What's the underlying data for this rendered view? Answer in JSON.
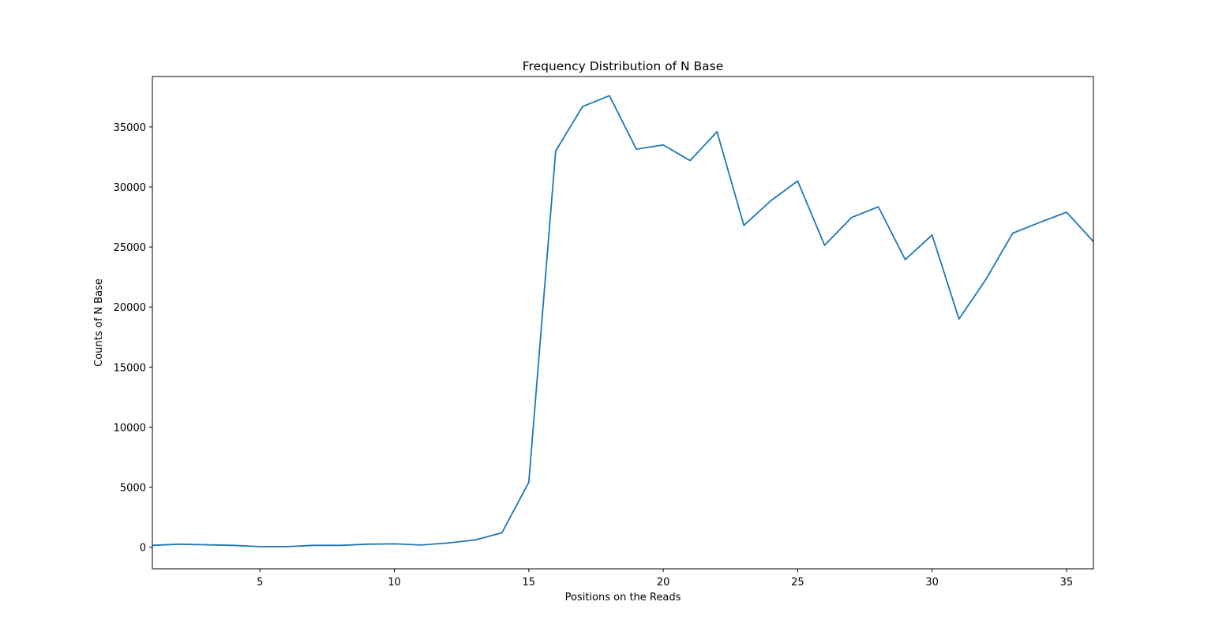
{
  "chart_data": {
    "type": "line",
    "title": "Frequency Distribution of N Base",
    "xlabel": "Positions on the Reads",
    "ylabel": "Counts of N Base",
    "xlim": [
      1,
      36
    ],
    "ylim": [
      -1800,
      39200
    ],
    "xticks": [
      5,
      10,
      15,
      20,
      25,
      30,
      35
    ],
    "yticks": [
      0,
      5000,
      10000,
      15000,
      20000,
      25000,
      30000,
      35000
    ],
    "grid": false,
    "series": [
      {
        "color": "#1f77b4",
        "x": [
          1,
          2,
          3,
          4,
          5,
          6,
          7,
          8,
          9,
          10,
          11,
          12,
          13,
          14,
          15,
          16,
          17,
          18,
          19,
          20,
          21,
          22,
          23,
          24,
          25,
          26,
          27,
          28,
          29,
          30,
          31,
          32,
          33,
          34,
          35,
          36
        ],
        "values": [
          150,
          250,
          200,
          150,
          50,
          50,
          150,
          150,
          250,
          280,
          180,
          350,
          600,
          1200,
          5400,
          33000,
          36700,
          37600,
          33150,
          33500,
          32200,
          34600,
          26800,
          28850,
          30500,
          25150,
          27450,
          28350,
          23950,
          26000,
          19000,
          22300,
          26150,
          27050,
          27900,
          25450
        ]
      }
    ]
  }
}
